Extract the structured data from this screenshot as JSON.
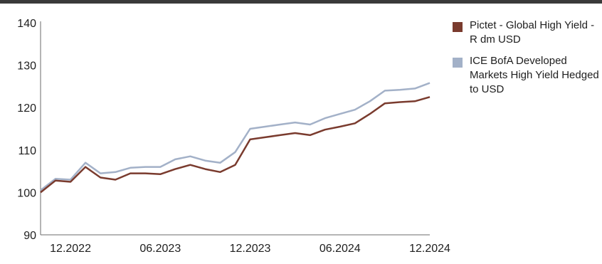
{
  "chart_data": {
    "type": "line",
    "title": "",
    "xlabel": "",
    "ylabel": "",
    "ylim": [
      90,
      140
    ],
    "yticks": [
      90,
      100,
      110,
      120,
      130,
      140
    ],
    "xticks": [
      "12.2022",
      "06.2023",
      "12.2023",
      "06.2024",
      "12.2024"
    ],
    "xrange": [
      "2022-10",
      "2024-12"
    ],
    "grid": false,
    "legend_position": "right",
    "x": [
      "2022-10",
      "2022-11",
      "2022-12",
      "2023-01",
      "2023-02",
      "2023-03",
      "2023-04",
      "2023-05",
      "2023-06",
      "2023-07",
      "2023-08",
      "2023-09",
      "2023-10",
      "2023-11",
      "2023-12",
      "2024-01",
      "2024-02",
      "2024-03",
      "2024-04",
      "2024-05",
      "2024-06",
      "2024-07",
      "2024-08",
      "2024-09",
      "2024-10",
      "2024-11",
      "2024-12"
    ],
    "series": [
      {
        "name": "Pictet - Global High Yield - R dm USD",
        "color": "#7a3b2e",
        "values": [
          100.0,
          102.8,
          102.5,
          106.0,
          103.5,
          103.0,
          104.5,
          104.5,
          104.3,
          105.5,
          106.5,
          105.5,
          104.8,
          106.5,
          112.5,
          113.0,
          113.5,
          114.0,
          113.5,
          114.8,
          115.5,
          116.3,
          118.5,
          121.0,
          121.3,
          121.5,
          122.5
        ]
      },
      {
        "name": "ICE BofA Developed Markets High Yield Hedged to USD",
        "color": "#a3b1c8",
        "values": [
          100.5,
          103.2,
          103.0,
          107.0,
          104.5,
          104.8,
          105.8,
          106.0,
          106.0,
          107.8,
          108.5,
          107.5,
          107.0,
          109.5,
          115.0,
          115.5,
          116.0,
          116.5,
          116.0,
          117.5,
          118.5,
          119.5,
          121.5,
          124.0,
          124.2,
          124.5,
          125.8
        ]
      }
    ]
  }
}
